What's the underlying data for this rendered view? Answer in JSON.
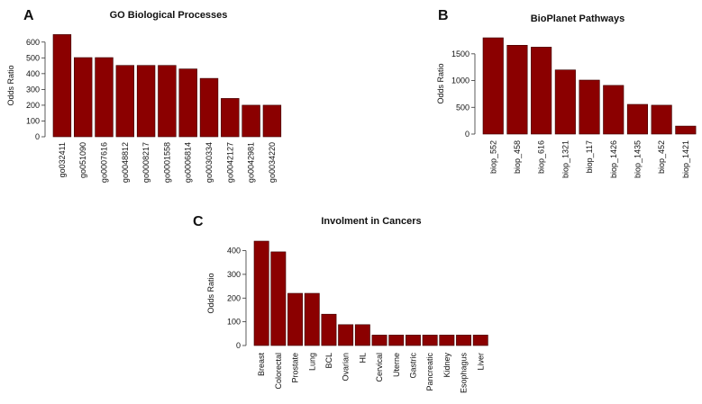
{
  "chart_data": [
    {
      "type": "bar",
      "panel": "A",
      "title": "GO Biological Processes",
      "xlabel": "",
      "ylabel": "Odds Ratio",
      "categories": [
        "go032411",
        "go051090",
        "go0007616",
        "go0048812",
        "go0008217",
        "go0001558",
        "go0006814",
        "go0030334",
        "go0042127",
        "go0042981",
        "go0034220"
      ],
      "values": [
        648,
        502,
        502,
        452,
        452,
        452,
        430,
        370,
        243,
        200,
        200
      ],
      "yticks": [
        0,
        100,
        200,
        300,
        400,
        500,
        600
      ],
      "ylim": [
        0,
        650
      ],
      "color": "#8b0000",
      "grid": false,
      "legend": "none"
    },
    {
      "type": "bar",
      "panel": "B",
      "title": "BioPlanet Pathways",
      "xlabel": "",
      "ylabel": "Odds Ratio",
      "categories": [
        "biop_552",
        "biop_458",
        "biop_616",
        "biop_1321",
        "biop_117",
        "biop_1426",
        "biop_1435",
        "biop_452",
        "biop_1421"
      ],
      "values": [
        1800,
        1660,
        1625,
        1200,
        1010,
        910,
        555,
        540,
        150
      ],
      "yticks": [
        0,
        500,
        1000,
        1500
      ],
      "ylim": [
        0,
        1800
      ],
      "color": "#8b0000",
      "grid": false,
      "legend": "none"
    },
    {
      "type": "bar",
      "panel": "C",
      "title": "Involment in Cancers",
      "xlabel": "",
      "ylabel": "Odds Ratio",
      "categories": [
        "Breast",
        "Colorectal",
        "Prostate",
        "Lung",
        "BCL",
        "Ovarian",
        "HL",
        "Cervical",
        "Uterne",
        "Gastric",
        "Pancreatic",
        "Kidney",
        "Esophagus",
        "Liver"
      ],
      "values": [
        440,
        395,
        220,
        220,
        132,
        88,
        88,
        44,
        44,
        44,
        44,
        44,
        44,
        44
      ],
      "yticks": [
        0,
        100,
        200,
        300,
        400
      ],
      "ylim": [
        0,
        440
      ],
      "color": "#8b0000",
      "grid": false,
      "legend": "none"
    }
  ]
}
